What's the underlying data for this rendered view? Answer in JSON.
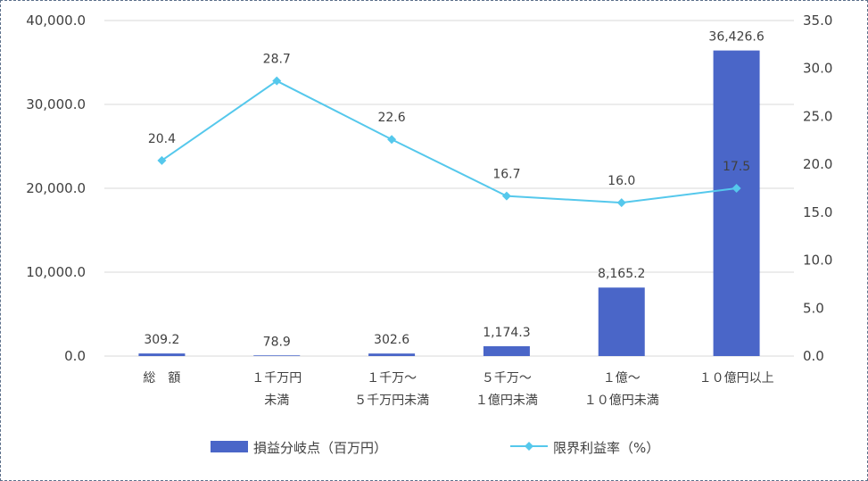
{
  "chart_data": {
    "type": "bar+line",
    "categories": [
      [
        "総　額"
      ],
      [
        "１千万円",
        "未満"
      ],
      [
        "１千万～",
        "５千万円未満"
      ],
      [
        "５千万～",
        "１億円未満"
      ],
      [
        "１億～",
        "１０億円未満"
      ],
      [
        "１０億円以上"
      ]
    ],
    "bar_series": {
      "name": "損益分岐点（百万円）",
      "values": [
        309.2,
        78.9,
        302.6,
        1174.3,
        8165.2,
        36426.6
      ],
      "labels": [
        "309.2",
        "78.9",
        "302.6",
        "1,174.3",
        "8,165.2",
        "36,426.6"
      ],
      "color": "#4a66c8"
    },
    "line_series": {
      "name": "限界利益率（%）",
      "values": [
        20.4,
        28.7,
        22.6,
        16.7,
        16.0,
        17.5
      ],
      "labels": [
        "20.4",
        "28.7",
        "22.6",
        "16.7",
        "16.0",
        "17.5"
      ],
      "color": "#55c8ec"
    },
    "y_left": {
      "min": 0,
      "max": 40000,
      "ticks": [
        0,
        10000,
        20000,
        30000,
        40000
      ],
      "tick_labels": [
        "0.0",
        "10,000.0",
        "20,000.0",
        "30,000.0",
        "40,000.0"
      ]
    },
    "y_right": {
      "min": 0,
      "max": 35,
      "ticks": [
        0,
        5,
        10,
        15,
        20,
        25,
        30,
        35
      ],
      "tick_labels": [
        "0.0",
        "5.0",
        "10.0",
        "15.0",
        "20.0",
        "25.0",
        "30.0",
        "35.0"
      ]
    },
    "grid": true,
    "legend": "bottom",
    "gridline_color": "#d9d9d9"
  }
}
